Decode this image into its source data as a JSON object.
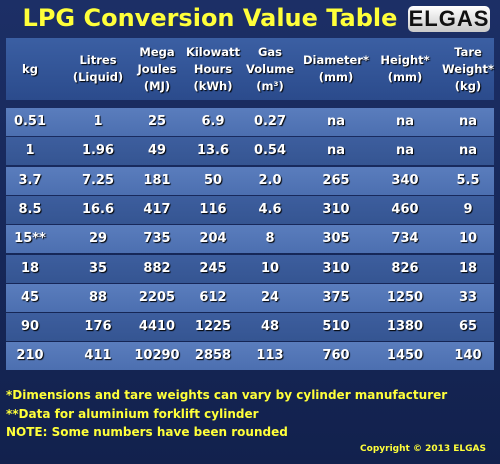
{
  "header": {
    "title": "LPG Conversion Value Table",
    "logo": "ELGAS"
  },
  "table": {
    "columns": [
      [
        "kg"
      ],
      [
        "Litres",
        "(Liquid)"
      ],
      [
        "Mega",
        "Joules",
        "(MJ)"
      ],
      [
        "Kilowatt",
        "Hours",
        "(kWh)"
      ],
      [
        "Gas",
        "Volume",
        "(m³)"
      ],
      [
        "Diameter*",
        "(mm)"
      ],
      [
        "Height*",
        "(mm)"
      ],
      [
        "Tare",
        "Weight*",
        "(kg)"
      ]
    ],
    "rows": [
      [
        "0.51",
        "1",
        "25",
        "6.9",
        "0.27",
        "na",
        "na",
        "na"
      ],
      [
        "1",
        "1.96",
        "49",
        "13.6",
        "0.54",
        "na",
        "na",
        "na"
      ],
      [
        "3.7",
        "7.25",
        "181",
        "50",
        "2.0",
        "265",
        "340",
        "5.5"
      ],
      [
        "8.5",
        "16.6",
        "417",
        "116",
        "4.6",
        "310",
        "460",
        "9"
      ],
      [
        "15**",
        "29",
        "735",
        "204",
        "8",
        "305",
        "734",
        "10"
      ],
      [
        "18",
        "35",
        "882",
        "245",
        "10",
        "310",
        "826",
        "18"
      ],
      [
        "45",
        "88",
        "2205",
        "612",
        "24",
        "375",
        "1250",
        "33"
      ],
      [
        "90",
        "176",
        "4410",
        "1225",
        "48",
        "510",
        "1380",
        "65"
      ],
      [
        "210",
        "411",
        "10290",
        "2858",
        "113",
        "760",
        "1450",
        "140"
      ]
    ]
  },
  "notes": [
    "*Dimensions and tare weights can vary by cylinder manufacturer",
    "**Data for aluminium forklift cylinder",
    "NOTE: Some numbers have been rounded"
  ],
  "copyright": "Copyright © 2013  ELGAS"
}
